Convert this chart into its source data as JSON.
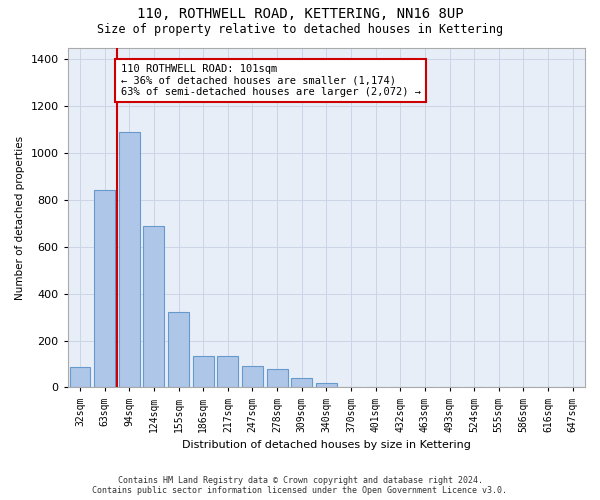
{
  "title1": "110, ROTHWELL ROAD, KETTERING, NN16 8UP",
  "title2": "Size of property relative to detached houses in Kettering",
  "xlabel": "Distribution of detached houses by size in Kettering",
  "ylabel": "Number of detached properties",
  "categories": [
    "32sqm",
    "63sqm",
    "94sqm",
    "124sqm",
    "155sqm",
    "186sqm",
    "217sqm",
    "247sqm",
    "278sqm",
    "309sqm",
    "340sqm",
    "370sqm",
    "401sqm",
    "432sqm",
    "463sqm",
    "493sqm",
    "524sqm",
    "555sqm",
    "586sqm",
    "616sqm",
    "647sqm"
  ],
  "values": [
    85,
    840,
    1090,
    690,
    320,
    135,
    135,
    90,
    80,
    40,
    20,
    0,
    0,
    0,
    0,
    0,
    0,
    0,
    0,
    0,
    0
  ],
  "bar_color": "#aec6e8",
  "bar_edge_color": "#6699cc",
  "vline_color": "#cc0000",
  "vline_x": 1.5,
  "annotation_text": "110 ROTHWELL ROAD: 101sqm\n← 36% of detached houses are smaller (1,174)\n63% of semi-detached houses are larger (2,072) →",
  "annotation_box_color": "#ffffff",
  "annotation_box_edge_color": "#cc0000",
  "ylim": [
    0,
    1450
  ],
  "yticks": [
    0,
    200,
    400,
    600,
    800,
    1000,
    1200,
    1400
  ],
  "grid_color": "#ccd4e8",
  "background_color": "#e8eef8",
  "footer1": "Contains HM Land Registry data © Crown copyright and database right 2024.",
  "footer2": "Contains public sector information licensed under the Open Government Licence v3.0."
}
